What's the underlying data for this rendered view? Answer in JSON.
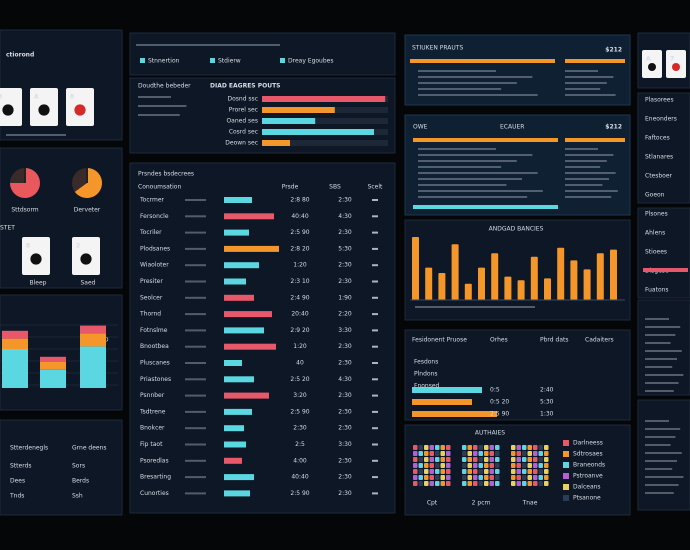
{
  "logo": "ctiorond",
  "top_cards": [
    "8",
    "A",
    "8"
  ],
  "gauges": [
    {
      "label": "Sttdsorm",
      "value": 75,
      "color": "#e8585c"
    },
    {
      "label": "Derveter",
      "value": 65,
      "color": "#f5962a"
    }
  ],
  "stet": "STET",
  "mid_cards": [
    {
      "rank": "8",
      "label": "Bleep"
    },
    {
      "rank": "2",
      "label": "Saed"
    }
  ],
  "left_chart": {
    "label": "5D",
    "groups": [
      {
        "cyan": 30,
        "orange": 8,
        "pink": 6
      },
      {
        "cyan": 14,
        "orange": 6,
        "pink": 4
      },
      {
        "cyan": 32,
        "orange": 10,
        "pink": 6
      }
    ]
  },
  "left_table": {
    "headers": [
      "Stterdenegls",
      "Grne deens"
    ],
    "rows": [
      [
        "Stterds",
        "Sors"
      ],
      [
        "Dees",
        "Berds"
      ],
      [
        "Tnds",
        "Ssh"
      ]
    ]
  },
  "header_strip": [
    "Stnnertion",
    "Stdierw",
    "Dreay Egoubes"
  ],
  "hbar": {
    "subtitle": "Doudthe bebeder",
    "title": "DIAD EAGRES POUTS",
    "rows": [
      {
        "label": "Dosnd ssc",
        "value": 88,
        "color": "#e8586b"
      },
      {
        "label": "Prorel sec",
        "value": 52,
        "color": "#f5962a"
      },
      {
        "label": "Oaned ses",
        "value": 38,
        "color": "#5ad7e0"
      },
      {
        "label": "Cosrd sec",
        "value": 80,
        "color": "#5ad7e0"
      },
      {
        "label": "Deown sec",
        "value": 20,
        "color": "#f5962a"
      }
    ]
  },
  "main_table": {
    "title": "Prsndes bsdecrees",
    "headers": [
      "Conoumsation",
      "Prsde",
      "SBS",
      "Scelt"
    ],
    "rows": [
      {
        "name": "Tocrmer",
        "bar": 28,
        "color": "#5ad7e0",
        "a": "2:8 80",
        "b": "2:30"
      },
      {
        "name": "Fersoncle",
        "bar": 50,
        "color": "#e8586b",
        "a": "40:40",
        "b": "4:30"
      },
      {
        "name": "Tocriler",
        "bar": 25,
        "color": "#5ad7e0",
        "a": "2:5 90",
        "b": "2:30"
      },
      {
        "name": "Plodsanes",
        "bar": 55,
        "color": "#f5962a",
        "a": "2:8 20",
        "b": "5:30"
      },
      {
        "name": "Wiaoloter",
        "bar": 35,
        "color": "#5ad7e0",
        "a": "1:20",
        "b": "2:30"
      },
      {
        "name": "Presiter",
        "bar": 22,
        "color": "#5ad7e0",
        "a": "2:3 10",
        "b": "2:30"
      },
      {
        "name": "Seolcer",
        "bar": 30,
        "color": "#e8586b",
        "a": "2:4 90",
        "b": "1:90"
      },
      {
        "name": "Thornd",
        "bar": 48,
        "color": "#e8586b",
        "a": "20:40",
        "b": "2:20"
      },
      {
        "name": "Fotnslme",
        "bar": 40,
        "color": "#5ad7e0",
        "a": "2:9 20",
        "b": "3:30"
      },
      {
        "name": "Bnootbea",
        "bar": 52,
        "color": "#e8586b",
        "a": "1:20",
        "b": "2:30"
      },
      {
        "name": "Pluscanes",
        "bar": 18,
        "color": "#5ad7e0",
        "a": "40",
        "b": "2:30"
      },
      {
        "name": "Priastones",
        "bar": 30,
        "color": "#5ad7e0",
        "a": "2:5 20",
        "b": "4:30"
      },
      {
        "name": "Psnnber",
        "bar": 45,
        "color": "#e8586b",
        "a": "3:20",
        "b": "2:30"
      },
      {
        "name": "Tsdtrene",
        "bar": 28,
        "color": "#5ad7e0",
        "a": "2:5 90",
        "b": "2:30"
      },
      {
        "name": "Bnokcer",
        "bar": 20,
        "color": "#5ad7e0",
        "a": "2:30",
        "b": "2:30"
      },
      {
        "name": "Fip taot",
        "bar": 22,
        "color": "#5ad7e0",
        "a": "2:5",
        "b": "3:30"
      },
      {
        "name": "Psoredlas",
        "bar": 18,
        "color": "#e8586b",
        "a": "4:00",
        "b": "2:30"
      },
      {
        "name": "Bresarting",
        "bar": 30,
        "color": "#5ad7e0",
        "a": "40:40",
        "b": "2:30"
      },
      {
        "name": "Cunorties",
        "bar": 26,
        "color": "#5ad7e0",
        "a": "2:5 90",
        "b": "2:30"
      }
    ]
  },
  "panel1": {
    "title": "STIUKEN PRAUTS",
    "amount": "$212"
  },
  "panel2": {
    "left": "OWE",
    "title": "ECAUER",
    "amount": "$212"
  },
  "vbar": {
    "title": "ANDGAD BANCIES",
    "values": [
      70,
      36,
      30,
      62,
      18,
      36,
      52,
      26,
      22,
      48,
      24,
      58,
      44,
      34,
      52,
      56
    ]
  },
  "table2": {
    "headers": [
      "Fesidonent Pruose",
      "Orhes",
      "Pbrd dats",
      "Cadaiters"
    ],
    "rows": [
      {
        "name": "Fesdons",
        "bar": 70,
        "color": "#5ad7e0",
        "a": "0:5",
        "b": "2:40"
      },
      {
        "name": "Plndons",
        "bar": 60,
        "color": "#f5962a",
        "a": "0:5 20",
        "b": "5:30"
      },
      {
        "name": "Fnonsed",
        "bar": 85,
        "color": "#f5962a",
        "a": "2:5 90",
        "b": "1:30"
      }
    ]
  },
  "heat": {
    "title": "AUTHAIES",
    "labels": [
      "Cpt",
      "2 pcm",
      "Tnae"
    ],
    "legend": [
      "Darlneess",
      "Sdtrosaes",
      "Braneonds",
      "Pstroanve",
      "Dalceans",
      "Ptsanone"
    ]
  },
  "right_cards": [
    "A",
    "7"
  ],
  "right_list": [
    "Plasorees",
    "Eneonders",
    "Faftoces",
    "Stlanares",
    "Ctesboer",
    "Goeon",
    "Plsones",
    "Ahlens",
    "Stioees",
    "Dlsgese",
    "Fuatons"
  ]
}
